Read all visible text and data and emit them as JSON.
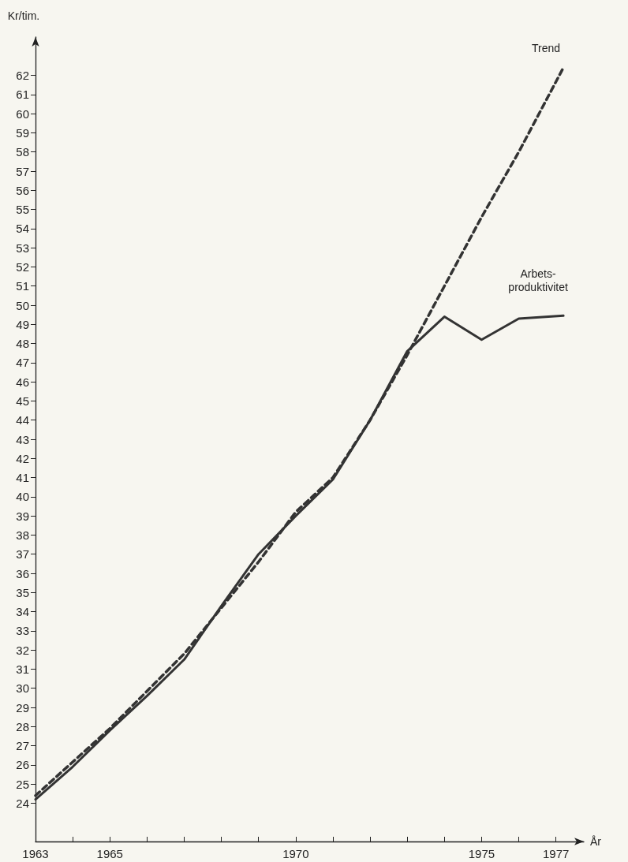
{
  "chart_data": {
    "type": "line",
    "xlabel": "År",
    "ylabel": "Kr/tim.",
    "xlim": [
      1963,
      1977.75
    ],
    "ylim": [
      22,
      64
    ],
    "xticks": [
      1963,
      {
        "value": 1964,
        "label": null
      },
      1965,
      {
        "value": 1966,
        "label": null
      },
      {
        "value": 1967,
        "label": null
      },
      {
        "value": 1968,
        "label": null
      },
      {
        "value": 1969,
        "label": null
      },
      1970,
      {
        "value": 1971,
        "label": null
      },
      {
        "value": 1972,
        "label": null
      },
      {
        "value": 1973,
        "label": null
      },
      {
        "value": 1974,
        "label": null
      },
      1975,
      {
        "value": 1976,
        "label": null
      },
      1977
    ],
    "yticks": [
      24,
      25,
      26,
      27,
      28,
      29,
      30,
      31,
      32,
      33,
      34,
      35,
      36,
      37,
      38,
      39,
      40,
      41,
      42,
      43,
      44,
      45,
      46,
      47,
      48,
      49,
      50,
      51,
      52,
      53,
      54,
      55,
      56,
      57,
      58,
      59,
      60,
      61,
      62
    ],
    "series": [
      {
        "name": "Trend",
        "color": "#333333",
        "line_style": "dashed",
        "x": [
          1963,
          1965,
          1967,
          1969,
          1970,
          1971,
          1972,
          1973,
          1974,
          1975,
          1976,
          1977.2
        ],
        "values": [
          24.4,
          27.9,
          31.8,
          36.6,
          39.2,
          41.0,
          44.0,
          47.4,
          51.0,
          54.6,
          58.0,
          62.4
        ]
      },
      {
        "name": "Arbets-\nproduktivitet",
        "color": "#333333",
        "line_style": "solid",
        "x": [
          1963,
          1964,
          1965,
          1966,
          1967,
          1968,
          1969,
          1970,
          1971,
          1972,
          1973,
          1974,
          1975,
          1976,
          1977.2
        ],
        "values": [
          24.2,
          25.9,
          27.8,
          29.6,
          31.5,
          34.3,
          37.0,
          39.0,
          40.9,
          44.0,
          47.6,
          49.4,
          48.2,
          49.3,
          49.45
        ]
      }
    ],
    "grid": false,
    "legend": false,
    "marker": "none"
  }
}
